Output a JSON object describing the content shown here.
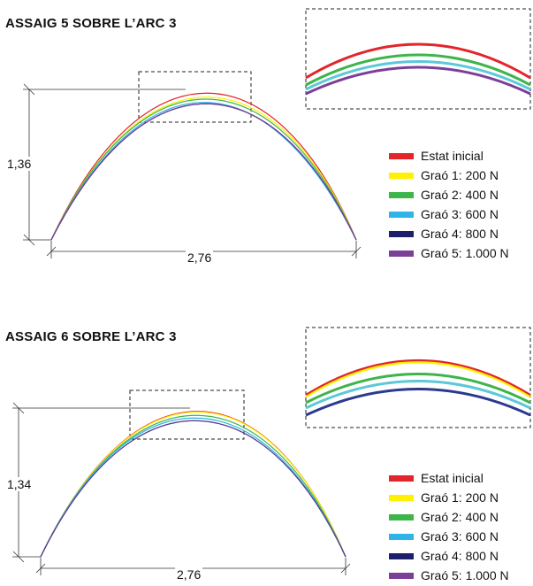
{
  "panels": [
    {
      "title": "ASSAIG 5 SOBRE L’ARC 3",
      "height_label": "1,36",
      "width_label": "2,76",
      "legend": [
        {
          "label": "Estat inicial",
          "color": "#e3242b"
        },
        {
          "label": "Graó 1: 200 N",
          "color": "#fff200"
        },
        {
          "label": "Graó 2: 400 N",
          "color": "#3db54a"
        },
        {
          "label": "Graó 3: 600 N",
          "color": "#2eb4e6"
        },
        {
          "label": "Graó 4: 800 N",
          "color": "#1d1f6b"
        },
        {
          "label": "Graó 5: 1.000 N",
          "color": "#7b3f98"
        }
      ]
    },
    {
      "title": "ASSAIG 6 SOBRE L’ARC 3",
      "height_label": "1,34",
      "width_label": "2,76",
      "legend": [
        {
          "label": "Estat inicial",
          "color": "#e3242b"
        },
        {
          "label": "Graó 1: 200 N",
          "color": "#fff200"
        },
        {
          "label": "Graó 2: 400 N",
          "color": "#3db54a"
        },
        {
          "label": "Graó 3: 600 N",
          "color": "#2eb4e6"
        },
        {
          "label": "Graó 4: 800 N",
          "color": "#1d1f6b"
        },
        {
          "label": "Graó 5: 1.000 N",
          "color": "#7b3f98"
        }
      ]
    }
  ]
}
